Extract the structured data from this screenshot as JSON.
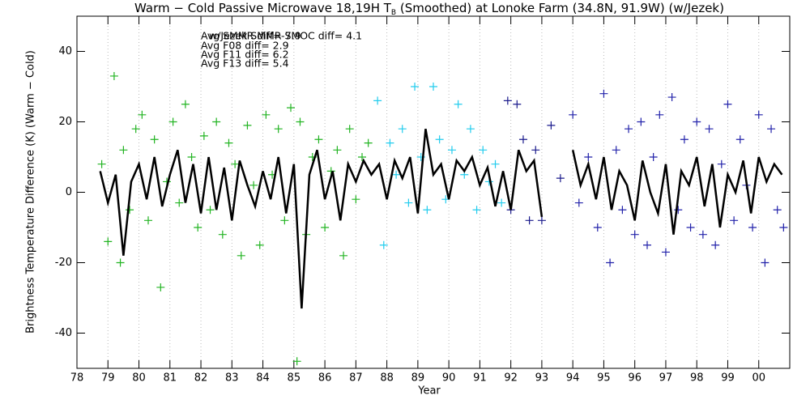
{
  "chart_data": {
    "type": "scatter",
    "title": "Warm − Cold Passive Microwave 18,19H T",
    "title_subscript": "B",
    "title_rest": " (Smoothed) at Lonoke Farm (34.8N, 91.9W) (w/Jezek)",
    "x_label": "Year",
    "y_label": "Brightness Temperature Difference (K) (Warm − Cold)",
    "xlim": [
      1978,
      2001
    ],
    "ylim": [
      -50,
      50
    ],
    "xticks": [
      {
        "value": 1978,
        "label": "78"
      },
      {
        "value": 1979,
        "label": "79"
      },
      {
        "value": 1980,
        "label": "80"
      },
      {
        "value": 1981,
        "label": "81"
      },
      {
        "value": 1982,
        "label": "82"
      },
      {
        "value": 1983,
        "label": "83"
      },
      {
        "value": 1984,
        "label": "84"
      },
      {
        "value": 1985,
        "label": "85"
      },
      {
        "value": 1986,
        "label": "86"
      },
      {
        "value": 1987,
        "label": "87"
      },
      {
        "value": 1988,
        "label": "88"
      },
      {
        "value": 1989,
        "label": "89"
      },
      {
        "value": 1990,
        "label": "90"
      },
      {
        "value": 1991,
        "label": "91"
      },
      {
        "value": 1992,
        "label": "92"
      },
      {
        "value": 1993,
        "label": "93"
      },
      {
        "value": 1994,
        "label": "94"
      },
      {
        "value": 1995,
        "label": "95"
      },
      {
        "value": 1996,
        "label": "96"
      },
      {
        "value": 1997,
        "label": "97"
      },
      {
        "value": 1998,
        "label": "98"
      },
      {
        "value": 1999,
        "label": "99"
      },
      {
        "value": 2000,
        "label": "00"
      }
    ],
    "yticks": [
      -40,
      -20,
      0,
      20,
      40
    ],
    "grid_x": true,
    "annotations": [
      {
        "text": "w/Jezek SMMR-SMOC diff=   4.1",
        "color": "#999999"
      },
      {
        "text": "Avg SMMR diff=   7.9",
        "color": "#22b422"
      },
      {
        "text": "Avg F08 diff=   2.9",
        "color": "#22ccee"
      },
      {
        "text": "Avg F11 diff=   6.2",
        "color": "#7aa8c8"
      },
      {
        "text": "Avg F13 diff=   5.4",
        "color": "#1a1a8c"
      }
    ],
    "series": [
      {
        "name": "SMMR",
        "color": "#22b422",
        "x": [
          1978.8,
          1979.0,
          1979.2,
          1979.4,
          1979.5,
          1979.7,
          1979.9,
          1980.1,
          1980.3,
          1980.5,
          1980.7,
          1980.9,
          1981.1,
          1981.3,
          1981.5,
          1981.7,
          1981.9,
          1982.1,
          1982.3,
          1982.5,
          1982.7,
          1982.9,
          1983.1,
          1983.3,
          1983.5,
          1983.7,
          1983.9,
          1984.1,
          1984.3,
          1984.5,
          1984.7,
          1984.9,
          1985.1,
          1985.2,
          1985.4,
          1985.6,
          1985.8,
          1986.0,
          1986.2,
          1986.4,
          1986.6,
          1986.8,
          1987.0,
          1987.2,
          1987.4
        ],
        "values": [
          8,
          -14,
          33,
          -20,
          12,
          -5,
          18,
          22,
          -8,
          15,
          -27,
          3,
          20,
          -3,
          25,
          10,
          -10,
          16,
          -5,
          20,
          -12,
          14,
          8,
          -18,
          19,
          2,
          -15,
          22,
          5,
          18,
          -8,
          24,
          -48,
          20,
          -12,
          10,
          15,
          -10,
          6,
          12,
          -18,
          18,
          -2,
          10,
          14
        ]
      },
      {
        "name": "F08",
        "color": "#22ccee",
        "x": [
          1987.7,
          1987.9,
          1988.1,
          1988.3,
          1988.5,
          1988.7,
          1988.9,
          1989.1,
          1989.3,
          1989.5,
          1989.7,
          1989.9,
          1990.1,
          1990.3,
          1990.5,
          1990.7,
          1990.9,
          1991.1,
          1991.3,
          1991.5,
          1991.7
        ],
        "values": [
          26,
          -15,
          14,
          5,
          18,
          -3,
          30,
          10,
          -5,
          30,
          15,
          -2,
          12,
          25,
          5,
          18,
          -5,
          12,
          3,
          8,
          -3
        ]
      },
      {
        "name": "F11",
        "color": "#1a1a8c",
        "x": [
          1991.9,
          1992.0,
          1992.2,
          1992.4,
          1992.6,
          1992.8,
          1993.0,
          1993.3,
          1993.6
        ],
        "values": [
          26,
          -5,
          25,
          15,
          -8,
          12,
          -8,
          19,
          4
        ]
      },
      {
        "name": "F13",
        "color": "#2222aa",
        "x": [
          1994.0,
          1994.2,
          1994.5,
          1994.8,
          1995.0,
          1995.2,
          1995.4,
          1995.6,
          1995.8,
          1996.0,
          1996.2,
          1996.4,
          1996.6,
          1996.8,
          1997.0,
          1997.2,
          1997.4,
          1997.6,
          1997.8,
          1998.0,
          1998.2,
          1998.4,
          1998.6,
          1998.8,
          1999.0,
          1999.2,
          1999.4,
          1999.6,
          1999.8,
          2000.0,
          2000.2,
          2000.4,
          2000.6,
          2000.8
        ],
        "values": [
          22,
          -3,
          10,
          -10,
          28,
          -20,
          12,
          -5,
          18,
          -12,
          20,
          -15,
          10,
          22,
          -17,
          27,
          -5,
          15,
          -10,
          20,
          -12,
          18,
          -15,
          8,
          25,
          -8,
          15,
          2,
          -10,
          22,
          -20,
          18,
          -5,
          -10
        ]
      }
    ],
    "smoothed": {
      "color": "#000000",
      "x": [
        1978.75,
        1979,
        1979.25,
        1979.5,
        1979.75,
        1980,
        1980.25,
        1980.5,
        1980.75,
        1981,
        1981.25,
        1981.5,
        1981.75,
        1982,
        1982.25,
        1982.5,
        1982.75,
        1983,
        1983.25,
        1983.5,
        1983.75,
        1984,
        1984.25,
        1984.5,
        1984.75,
        1985,
        1985.25,
        1985.5,
        1985.75,
        1986,
        1986.25,
        1986.5,
        1986.75,
        1987,
        1987.25,
        1987.5,
        1987.75,
        1988,
        1988.25,
        1988.5,
        1988.75,
        1989,
        1989.25,
        1989.5,
        1989.75,
        1990,
        1990.25,
        1990.5,
        1990.75,
        1991,
        1991.25,
        1991.5,
        1991.75,
        1992,
        1992.25,
        1992.5,
        1992.75,
        1993,
        1993.5,
        1994,
        1994.25,
        1994.5,
        1994.75,
        1995,
        1995.25,
        1995.5,
        1995.75,
        1996,
        1996.25,
        1996.5,
        1996.75,
        1997,
        1997.25,
        1997.5,
        1997.75,
        1998,
        1998.25,
        1998.5,
        1998.75,
        1999,
        1999.25,
        1999.5,
        1999.75,
        2000,
        2000.25,
        2000.5,
        2000.75
      ],
      "values": [
        6,
        -3,
        5,
        -18,
        3,
        8,
        -2,
        10,
        -4,
        5,
        12,
        -3,
        8,
        -6,
        10,
        -5,
        7,
        -8,
        9,
        2,
        -4,
        6,
        -2,
        10,
        -6,
        8,
        -33,
        5,
        12,
        -2,
        6,
        -8,
        8,
        3,
        9,
        5,
        8,
        -2,
        9,
        4,
        10,
        -6,
        18,
        5,
        8,
        -2,
        9,
        6,
        10,
        2,
        7,
        -4,
        6,
        -5,
        12,
        6,
        9,
        -7,
        null,
        12,
        2,
        8,
        -2,
        10,
        -5,
        6,
        2,
        -8,
        9,
        0,
        -6,
        8,
        -12,
        6,
        2,
        10,
        -4,
        8,
        -10,
        5,
        0,
        9,
        -6,
        10,
        3,
        8,
        5
      ]
    }
  }
}
